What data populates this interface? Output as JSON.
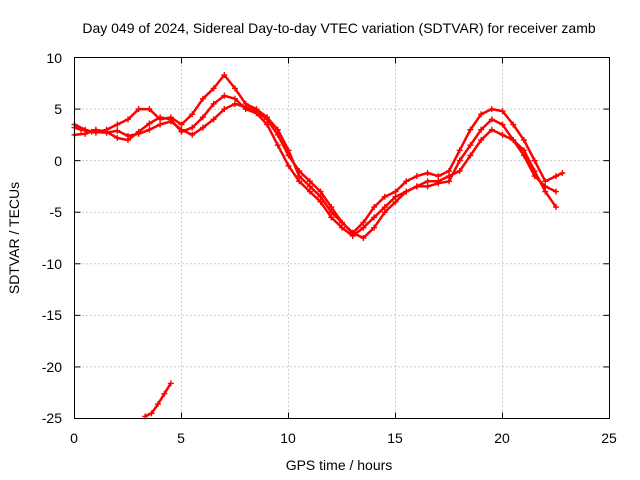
{
  "chart_data": {
    "type": "scatter",
    "title": "Day 049 of 2024, Sidereal Day-to-day VTEC variation (SDTVAR) for receiver zamb",
    "xlabel": "GPS time / hours",
    "ylabel": "SDTVAR / TECUs",
    "xlim": [
      0,
      25
    ],
    "ylim": [
      -25,
      10
    ],
    "x_ticks": [
      0,
      5,
      10,
      15,
      20,
      25
    ],
    "y_ticks": [
      10,
      5,
      0,
      -5,
      -10,
      -15,
      -20,
      -25
    ],
    "x_tick_labels": [
      "0",
      "5",
      "10",
      "15",
      "20",
      "25"
    ],
    "y_tick_labels": [
      "10",
      "5",
      "0",
      "-5",
      "-10",
      "-15",
      "-20",
      "-25"
    ],
    "grid": true,
    "marker": "cross",
    "color": "#ff0000",
    "series": [
      {
        "name": "track-1",
        "x": [
          0.0,
          0.3,
          0.8,
          1.5,
          2.0,
          2.5,
          3.0,
          3.5,
          4.0,
          4.5,
          5.0,
          5.5,
          6.0,
          6.5,
          7.0,
          7.5,
          8.0,
          8.5,
          9.0,
          9.5,
          10.0,
          10.5,
          11.0,
          11.5,
          12.0,
          12.5,
          13.0,
          13.5,
          14.0,
          14.5,
          15.0,
          15.5,
          16.0,
          16.5,
          17.0,
          17.5,
          18.0,
          18.5,
          19.0,
          19.5,
          20.0,
          20.5,
          21.0,
          21.5,
          22.0,
          22.5
        ],
        "y": [
          3.2,
          3.0,
          2.8,
          2.7,
          2.9,
          2.4,
          2.6,
          3.0,
          3.5,
          3.8,
          3.0,
          2.5,
          3.2,
          4.0,
          5.0,
          5.5,
          5.2,
          4.8,
          4.0,
          2.5,
          0.5,
          -1.0,
          -2.0,
          -3.0,
          -4.5,
          -6.0,
          -7.0,
          -7.5,
          -6.5,
          -5.0,
          -4.0,
          -3.0,
          -2.5,
          -2.0,
          -2.0,
          -1.5,
          -1.0,
          0.5,
          2.0,
          3.0,
          2.5,
          2.0,
          1.0,
          -1.0,
          -3.0,
          -4.5
        ]
      },
      {
        "name": "track-2",
        "x": [
          0.0,
          0.5,
          1.0,
          1.5,
          2.0,
          2.5,
          3.0,
          3.5,
          4.0,
          4.5,
          5.0,
          5.5,
          6.0,
          6.5,
          7.0,
          7.5,
          8.0,
          8.5,
          9.0,
          9.5,
          10.0,
          10.5,
          11.0,
          11.5,
          12.0,
          12.5,
          13.0,
          13.5,
          14.0,
          14.5,
          15.0,
          15.5,
          16.0,
          16.5,
          17.0,
          17.5,
          18.0,
          18.5,
          19.0,
          19.5,
          20.0,
          20.5,
          21.0,
          21.5,
          22.0,
          22.5
        ],
        "y": [
          2.5,
          2.6,
          3.0,
          2.8,
          2.2,
          2.0,
          2.8,
          3.6,
          4.2,
          4.0,
          2.8,
          3.2,
          4.2,
          5.5,
          6.3,
          6.0,
          5.0,
          4.6,
          3.5,
          1.5,
          -0.5,
          -2.0,
          -3.0,
          -4.0,
          -5.5,
          -6.5,
          -7.3,
          -6.5,
          -5.5,
          -4.5,
          -3.5,
          -3.0,
          -2.5,
          -2.5,
          -2.2,
          -2.0,
          0.0,
          1.5,
          3.0,
          4.0,
          3.5,
          2.0,
          0.5,
          -1.5,
          -2.5,
          -3.0
        ]
      },
      {
        "name": "track-3",
        "x": [
          0.0,
          0.5,
          1.0,
          1.5,
          2.0,
          2.5,
          3.0,
          3.5,
          4.0,
          4.5,
          5.0,
          5.5,
          6.0,
          6.5,
          7.0,
          7.5,
          8.0,
          8.5,
          9.0,
          9.5,
          10.0,
          10.5,
          11.0,
          11.5,
          12.0,
          12.5,
          13.0,
          13.5,
          14.0,
          14.5,
          15.0,
          15.5,
          16.0,
          16.5,
          17.0,
          17.5,
          18.0,
          18.5,
          19.0,
          19.5,
          20.0,
          20.5,
          21.0,
          21.5,
          22.0,
          22.5,
          22.8
        ],
        "y": [
          3.5,
          3.0,
          2.7,
          3.0,
          3.5,
          4.0,
          5.0,
          5.0,
          4.0,
          4.2,
          3.5,
          4.5,
          6.0,
          7.0,
          8.3,
          7.0,
          5.5,
          5.0,
          4.2,
          3.0,
          1.0,
          -1.5,
          -2.5,
          -3.5,
          -5.0,
          -6.0,
          -7.0,
          -6.0,
          -4.5,
          -3.5,
          -3.0,
          -2.0,
          -1.5,
          -1.2,
          -1.5,
          -1.0,
          1.0,
          3.0,
          4.5,
          5.0,
          4.8,
          3.5,
          2.0,
          0.0,
          -2.0,
          -1.5,
          -1.2
        ]
      },
      {
        "name": "track-4",
        "x": [
          3.3,
          3.6,
          3.9,
          4.2,
          4.5
        ],
        "y": [
          -24.8,
          -24.5,
          -23.6,
          -22.6,
          -21.6
        ]
      }
    ]
  }
}
